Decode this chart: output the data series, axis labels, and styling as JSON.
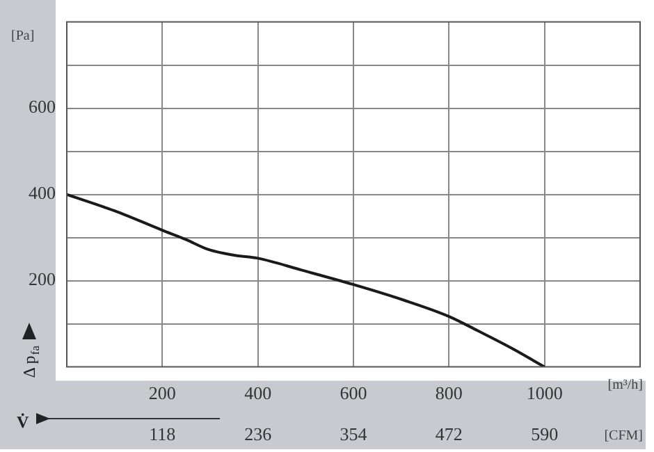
{
  "chart_data": {
    "type": "line",
    "x": [
      0,
      100,
      200,
      250,
      297,
      350,
      400,
      490,
      600,
      705,
      800,
      860,
      930,
      1000
    ],
    "series": [
      {
        "color": "#1a1a1a",
        "values": [
          400,
          362,
          317,
          295,
          272,
          259,
          252,
          225,
          191,
          155,
          117,
          84,
          44,
          0
        ]
      }
    ],
    "xlim": [
      0,
      1200
    ],
    "xticks": [
      200,
      400,
      600,
      800,
      1000
    ],
    "x2lim": [
      0,
      708
    ],
    "x2ticks": [
      118,
      236,
      354,
      472,
      590
    ],
    "ylim": [
      0,
      800
    ],
    "yticks": [
      {
        "value": 100,
        "label": null
      },
      200,
      {
        "value": 300,
        "label": null
      },
      400,
      {
        "value": 500,
        "label": null
      },
      600,
      {
        "value": 700,
        "label": null
      }
    ],
    "xlabel": "[m³/h]",
    "x2label": "[CFM]",
    "ylabel": "Δ p$_{fa}$",
    "annotations": [
      "[Pa]",
      "V̇"
    ],
    "grid": true,
    "legend": false,
    "marker": "none",
    "line_style": "solid"
  }
}
